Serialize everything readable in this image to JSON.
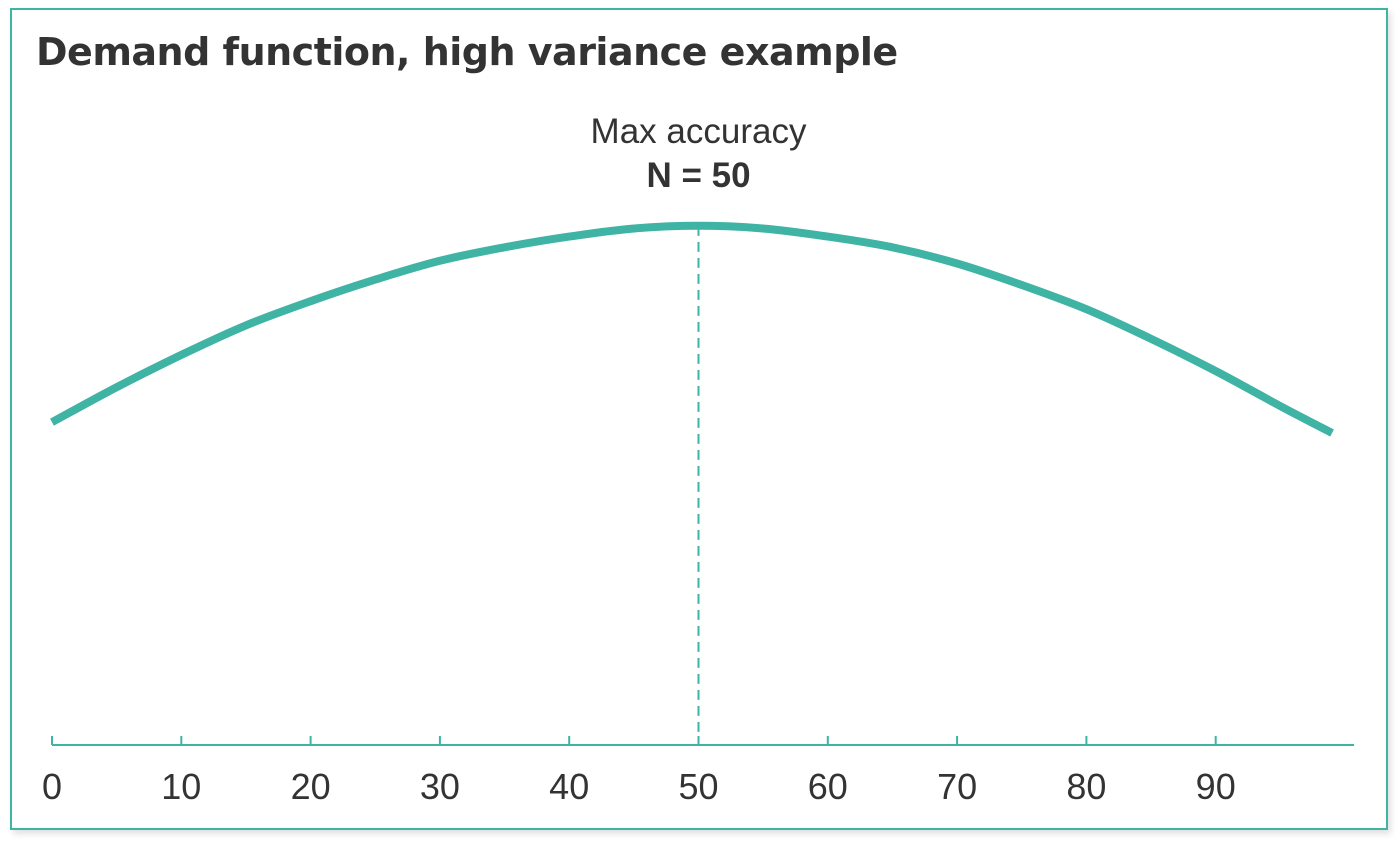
{
  "chart_data": {
    "type": "line",
    "title": "Demand function, high variance example",
    "xlabel": "",
    "ylabel": "",
    "xlim": [
      0,
      99
    ],
    "ylim": [
      0,
      1
    ],
    "x_ticks": [
      0,
      10,
      20,
      30,
      40,
      50,
      60,
      70,
      80,
      90
    ],
    "grid": false,
    "y_axis_visible": false,
    "colors": {
      "line": "#3fb3a4",
      "axis": "#3fb3a4",
      "marker": "#3fb3a4",
      "text": "#333333",
      "border": "#3fb3a4"
    },
    "series": [
      {
        "x": [
          0,
          5,
          10,
          15,
          20,
          25,
          30,
          35,
          40,
          45,
          50,
          55,
          60,
          65,
          70,
          75,
          80,
          85,
          90,
          95,
          99
        ],
        "y": [
          0.6,
          0.665,
          0.725,
          0.78,
          0.825,
          0.865,
          0.9,
          0.925,
          0.945,
          0.96,
          0.965,
          0.96,
          0.945,
          0.925,
          0.895,
          0.855,
          0.81,
          0.755,
          0.695,
          0.63,
          0.58
        ]
      }
    ],
    "annotations": [
      {
        "x": 50,
        "label": "Max accuracy",
        "value_label": "N = 50",
        "style": "dashed-vertical-line"
      }
    ]
  }
}
